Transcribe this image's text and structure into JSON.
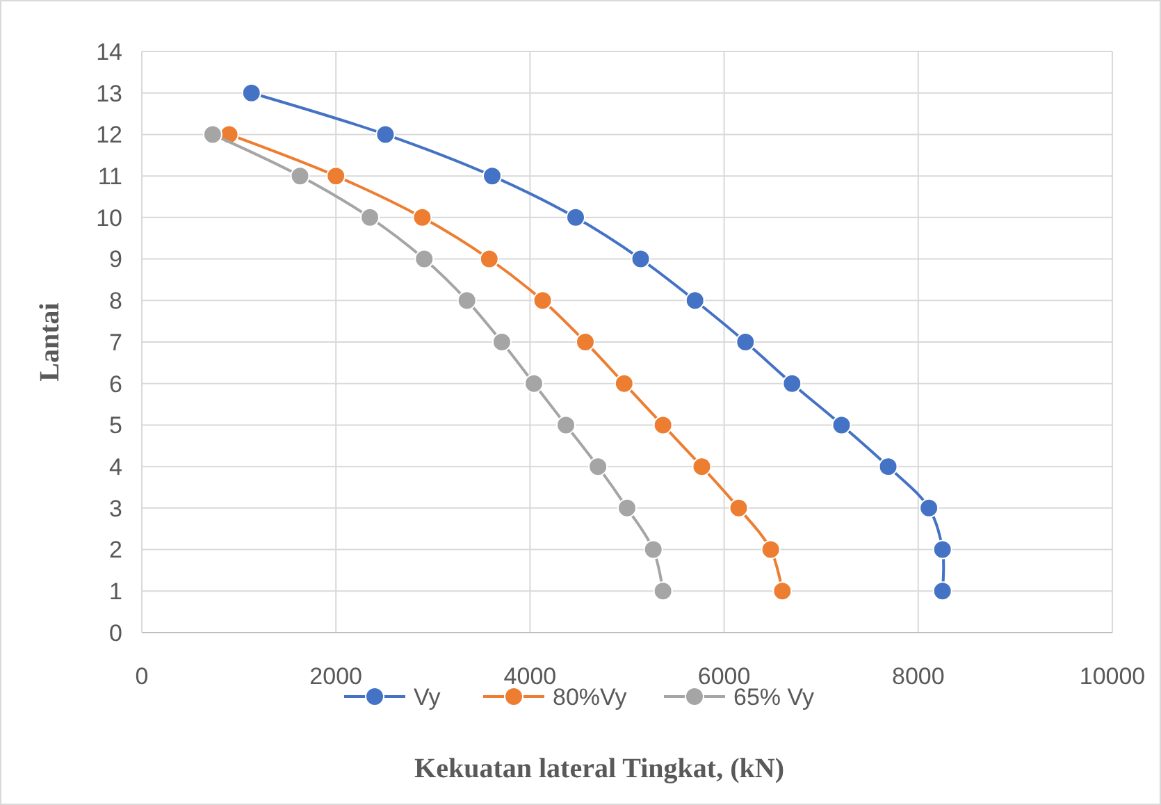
{
  "chart_data": {
    "type": "line",
    "xlabel": "Kekuatan lateral Tingkat, (kN)",
    "ylabel": "Lantai",
    "xlim": [
      0,
      10000
    ],
    "xticks": [
      0,
      2000,
      4000,
      6000,
      8000,
      10000
    ],
    "ylim": [
      0,
      14
    ],
    "yticks": [
      0,
      1,
      2,
      3,
      4,
      5,
      6,
      7,
      8,
      9,
      10,
      11,
      12,
      13,
      14
    ],
    "grid": true,
    "legend": "bottom",
    "marker": "circle",
    "series": [
      {
        "name": "Vy",
        "color": "#4472c4",
        "x": [
          1130,
          2510,
          3610,
          4470,
          5140,
          5700,
          6220,
          6700,
          7210,
          7690,
          8110,
          8250,
          8250
        ],
        "values": [
          13,
          12,
          11,
          10,
          9,
          8,
          7,
          6,
          5,
          4,
          3,
          2,
          1
        ]
      },
      {
        "name": "80%Vy",
        "color": "#ed7d31",
        "x": [
          900,
          2000,
          2890,
          3580,
          4130,
          4570,
          4970,
          5370,
          5770,
          6150,
          6480,
          6600
        ],
        "values": [
          12,
          11,
          10,
          9,
          8,
          7,
          6,
          5,
          4,
          3,
          2,
          1
        ]
      },
      {
        "name": "65% Vy",
        "color": "#a5a5a5",
        "x": [
          730,
          1630,
          2350,
          2910,
          3350,
          3710,
          4040,
          4370,
          4700,
          5000,
          5270,
          5370
        ],
        "values": [
          12,
          11,
          10,
          9,
          8,
          7,
          6,
          5,
          4,
          3,
          2,
          1
        ]
      }
    ]
  }
}
